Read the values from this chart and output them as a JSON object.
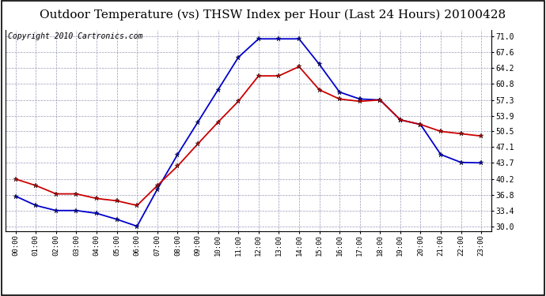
{
  "title": "Outdoor Temperature (vs) THSW Index per Hour (Last 24 Hours) 20100428",
  "copyright": "Copyright 2010 Cartronics.com",
  "hours": [
    "00:00",
    "01:00",
    "02:00",
    "03:00",
    "04:00",
    "05:00",
    "06:00",
    "07:00",
    "08:00",
    "09:00",
    "10:00",
    "11:00",
    "12:00",
    "13:00",
    "14:00",
    "15:00",
    "16:00",
    "17:00",
    "18:00",
    "19:00",
    "20:00",
    "21:00",
    "22:00",
    "23:00"
  ],
  "temp": [
    40.2,
    38.8,
    37.0,
    37.0,
    36.0,
    35.5,
    34.5,
    38.8,
    43.0,
    47.8,
    52.5,
    57.0,
    62.5,
    62.5,
    64.5,
    59.5,
    57.5,
    57.0,
    57.3,
    53.0,
    52.0,
    50.5,
    50.0,
    49.5
  ],
  "thsw": [
    36.5,
    34.5,
    33.4,
    33.4,
    32.8,
    31.5,
    30.0,
    38.0,
    45.5,
    52.5,
    59.5,
    66.5,
    70.5,
    70.5,
    70.5,
    65.0,
    59.0,
    57.5,
    57.3,
    53.0,
    52.0,
    45.5,
    43.8,
    43.7
  ],
  "temp_color": "#cc0000",
  "thsw_color": "#0000cc",
  "bg_color": "#ffffff",
  "grid_color": "#9999bb",
  "title_fontsize": 11,
  "copyright_fontsize": 7,
  "yticks": [
    30.0,
    33.4,
    36.8,
    40.2,
    43.7,
    47.1,
    50.5,
    53.9,
    57.3,
    60.8,
    64.2,
    67.6,
    71.0
  ],
  "ymin": 29.0,
  "ymax": 72.5,
  "marker": "*",
  "marker_size": 5,
  "line_width": 1.3
}
